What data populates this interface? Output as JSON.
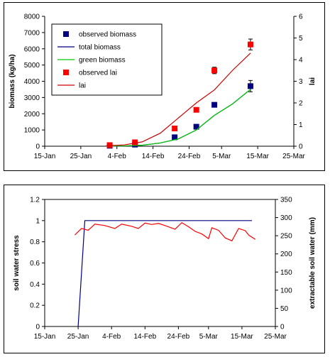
{
  "chart_data": [
    {
      "type": "line",
      "title": "",
      "xlabel": "",
      "ylabel": "biomass (kg/ha)",
      "y2label": "lai",
      "x_ticks": [
        "15-Jan",
        "25-Jan",
        "4-Feb",
        "14-Feb",
        "24-Feb",
        "5-Mar",
        "15-Mar",
        "25-Mar"
      ],
      "ylim": [
        0,
        8000
      ],
      "y_ticks": [
        "0",
        "1000",
        "2000",
        "3000",
        "4000",
        "5000",
        "6000",
        "7000",
        "8000"
      ],
      "y2lim": [
        0,
        6
      ],
      "y2_ticks": [
        "0",
        "1",
        "2",
        "3",
        "4",
        "5",
        "6"
      ],
      "legend": {
        "placement": "top-left",
        "entries": [
          "observed biomass",
          "total biomass",
          "green biomass",
          "observed lai",
          "lai"
        ]
      },
      "series": [
        {
          "name": "observed biomass",
          "kind": "marker",
          "axis": "left",
          "color": "#000080",
          "x": [
            "2-Feb",
            "9-Feb",
            "20-Feb",
            "26-Feb",
            "3-Mar",
            "13-Mar"
          ],
          "values": [
            30,
            100,
            550,
            1200,
            2550,
            3700
          ],
          "errors": [
            0,
            0,
            0,
            0,
            0,
            350
          ]
        },
        {
          "name": "total biomass",
          "kind": "line",
          "axis": "left",
          "color": "#000080",
          "x": [
            "1-Feb",
            "6-Feb",
            "11-Feb",
            "16-Feb",
            "21-Feb",
            "26-Feb",
            "3-Mar",
            "8-Mar",
            "13-Mar"
          ],
          "values": [
            10,
            20,
            60,
            200,
            450,
            1000,
            1900,
            2600,
            3500
          ]
        },
        {
          "name": "green biomass",
          "kind": "line",
          "axis": "left",
          "color": "#00cc00",
          "x": [
            "1-Feb",
            "6-Feb",
            "11-Feb",
            "16-Feb",
            "21-Feb",
            "26-Feb",
            "3-Mar",
            "8-Mar",
            "13-Mar"
          ],
          "values": [
            10,
            20,
            60,
            200,
            450,
            1000,
            1900,
            2600,
            3500
          ]
        },
        {
          "name": "observed lai",
          "kind": "marker",
          "axis": "right",
          "color": "#ff0000",
          "x": [
            "2-Feb",
            "9-Feb",
            "20-Feb",
            "26-Feb",
            "3-Mar",
            "13-Mar"
          ],
          "values": [
            0.05,
            0.18,
            0.82,
            1.68,
            3.5,
            4.7
          ],
          "errors": [
            0,
            0,
            0,
            0,
            0.15,
            0.25
          ]
        },
        {
          "name": "lai",
          "kind": "line",
          "axis": "right",
          "color": "#cc0000",
          "x": [
            "1-Feb",
            "6-Feb",
            "11-Feb",
            "16-Feb",
            "21-Feb",
            "26-Feb",
            "3-Mar",
            "8-Mar",
            "13-Mar"
          ],
          "values": [
            0.02,
            0.06,
            0.2,
            0.6,
            1.3,
            2.0,
            2.6,
            3.5,
            4.3
          ]
        }
      ]
    },
    {
      "type": "line",
      "title": "",
      "xlabel": "",
      "ylabel": "soil water stress",
      "y2label": "extractable soil water (mm)",
      "x_ticks": [
        "15-Jan",
        "25-Jan",
        "4-Feb",
        "14-Feb",
        "24-Feb",
        "5-Mar",
        "15-Mar",
        "25-Mar"
      ],
      "ylim": [
        0,
        1.2
      ],
      "y_ticks": [
        "0",
        "0.2",
        "0.4",
        "0.6",
        "0.8",
        "1",
        "1.2"
      ],
      "y2lim": [
        0,
        350
      ],
      "y2_ticks": [
        "0",
        "50",
        "100",
        "150",
        "200",
        "250",
        "300",
        "350"
      ],
      "series": [
        {
          "kind": "line",
          "axis": "left",
          "color": "#000080",
          "x": [
            "25-Jan",
            "27-Jan",
            "18-Mar"
          ],
          "values": [
            0,
            1,
            1
          ]
        },
        {
          "kind": "line",
          "axis": "right",
          "color": "#ff0000",
          "x": [
            "24-Jan",
            "26-Jan",
            "28-Jan",
            "30-Jan",
            "2-Feb",
            "5-Feb",
            "7-Feb",
            "10-Feb",
            "12-Feb",
            "14-Feb",
            "16-Feb",
            "18-Feb",
            "20-Feb",
            "23-Feb",
            "25-Feb",
            "27-Feb",
            "1-Mar",
            "3-Mar",
            "5-Mar",
            "6-Mar",
            "8-Mar",
            "10-Mar",
            "12-Mar",
            "14-Mar",
            "16-Mar",
            "17-Mar",
            "19-Mar"
          ],
          "values": [
            252,
            270,
            265,
            282,
            278,
            270,
            282,
            276,
            270,
            285,
            281,
            284,
            278,
            268,
            286,
            275,
            262,
            255,
            242,
            272,
            265,
            244,
            236,
            270,
            264,
            252,
            240
          ]
        }
      ]
    }
  ]
}
